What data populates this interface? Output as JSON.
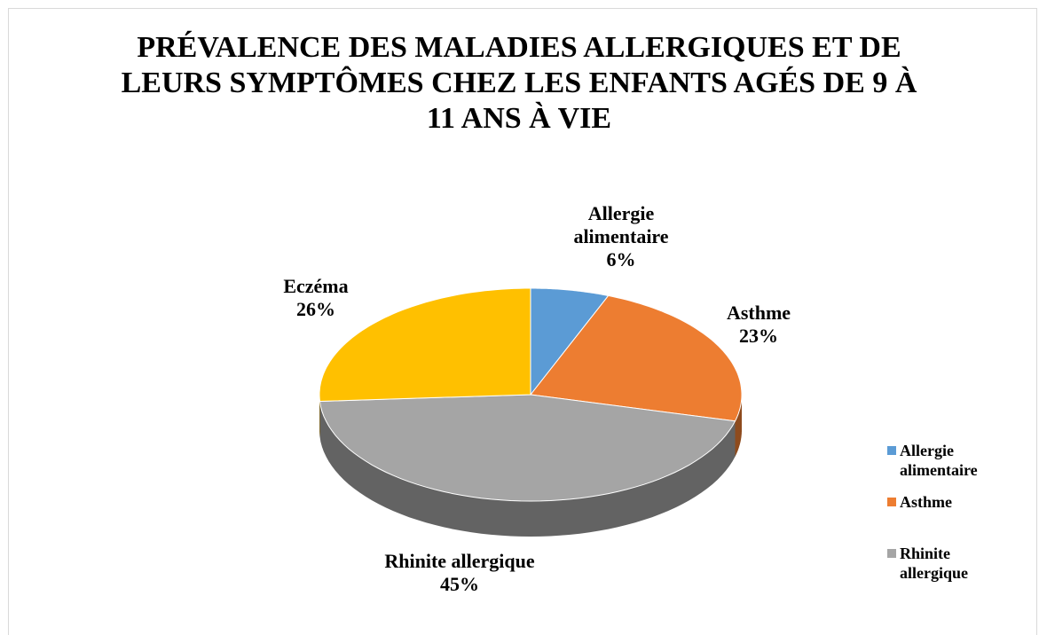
{
  "chart_data": {
    "type": "pie3d",
    "title": "PRÉVALENCE DES MALADIES ALLERGIQUES ET DE LEURS SYMPTÔMES CHEZ LES ENFANTS AGÉS DE 9 À 11 ANS À VIE",
    "categories": [
      "Allergie alimentaire",
      "Asthme",
      "Rhinite allergique",
      "Eczéma"
    ],
    "values": [
      6,
      23,
      45,
      26
    ],
    "value_labels": [
      "6%",
      "23%",
      "45%",
      "26%"
    ],
    "colors": [
      "#5b9bd5",
      "#ed7d31",
      "#a5a5a5",
      "#ffc000"
    ],
    "legend": "right"
  }
}
